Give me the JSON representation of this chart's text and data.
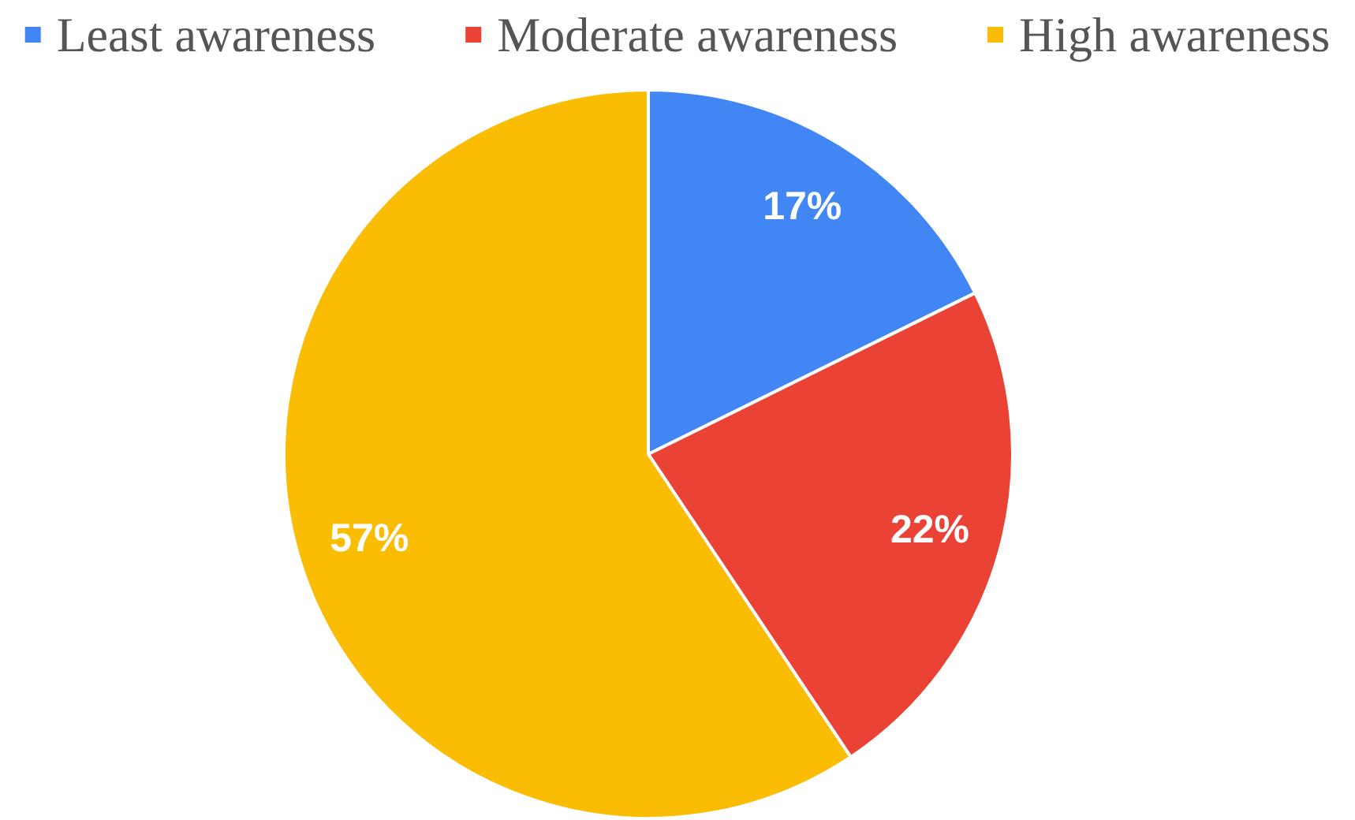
{
  "chart_data": {
    "type": "pie",
    "categories": [
      "Least awareness",
      "Moderate awareness",
      "High awareness"
    ],
    "values": [
      17,
      22,
      57
    ],
    "colors": [
      "#4285f4",
      "#ea4335",
      "#fbbc04"
    ],
    "value_labels": [
      "17%",
      "22%",
      "57%"
    ],
    "legend": "top"
  }
}
